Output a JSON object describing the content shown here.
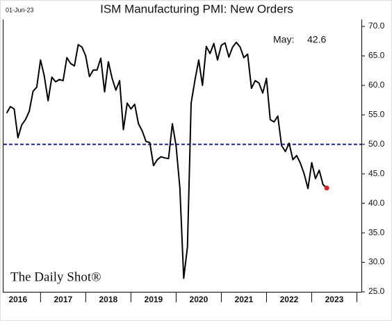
{
  "chart_data": {
    "type": "line",
    "title": "ISM Manufacturing PMI: New Orders",
    "date_stamp": "01-Jun-23",
    "annotation": "May:",
    "source": "The Daily Shot®",
    "x": [
      2016.25,
      2016.333,
      2016.417,
      2016.5,
      2016.583,
      2016.667,
      2016.75,
      2016.833,
      2016.917,
      2017,
      2017.083,
      2017.167,
      2017.25,
      2017.333,
      2017.417,
      2017.5,
      2017.583,
      2017.667,
      2017.75,
      2017.833,
      2017.917,
      2018,
      2018.083,
      2018.167,
      2018.25,
      2018.333,
      2018.417,
      2018.5,
      2018.583,
      2018.667,
      2018.75,
      2018.833,
      2018.917,
      2019,
      2019.083,
      2019.167,
      2019.25,
      2019.333,
      2019.417,
      2019.5,
      2019.583,
      2019.667,
      2019.75,
      2019.833,
      2019.917,
      2020,
      2020.083,
      2020.167,
      2020.25,
      2020.333,
      2020.417,
      2020.5,
      2020.583,
      2020.667,
      2020.75,
      2020.833,
      2020.917,
      2021,
      2021.083,
      2021.167,
      2021.25,
      2021.333,
      2021.417,
      2021.5,
      2021.583,
      2021.667,
      2021.75,
      2021.833,
      2021.917,
      2022,
      2022.083,
      2022.167,
      2022.25,
      2022.333,
      2022.417,
      2022.5,
      2022.583,
      2022.667,
      2022.75,
      2022.833,
      2022.917,
      2023,
      2023.083,
      2023.167,
      2023.25,
      2023.333
    ],
    "series": [
      {
        "name": "New Orders",
        "color": "#000000",
        "values": [
          55.3,
          56.4,
          56,
          51.1,
          53.3,
          54.2,
          55.6,
          59,
          59.7,
          64.3,
          61.6,
          57.4,
          61.4,
          60.6,
          61,
          60.8,
          64.7,
          63.7,
          63.3,
          66.9,
          66.5,
          65,
          61.5,
          62.6,
          62.6,
          64.6,
          58.9,
          64,
          61.2,
          59.2,
          60.8,
          52.5,
          57,
          56,
          56.8,
          53.5,
          52.3,
          50.5,
          50.3,
          46.4,
          47.4,
          47.9,
          47.7,
          47.6,
          53.5,
          49.7,
          42.6,
          27.3,
          32.6,
          57,
          60.9,
          64.3,
          60,
          66.6,
          65.4,
          67.1,
          64.3,
          66.8,
          67.2,
          64.8,
          66.5,
          67.3,
          66.5,
          64.7,
          65.3,
          59.5,
          60.8,
          60.4,
          58.7,
          61.2,
          54.2,
          53.8,
          54.8,
          49.8,
          48.8,
          50.2,
          47.4,
          48.1,
          46.8,
          45,
          42.5,
          46.9,
          44.2,
          45.6,
          43.2,
          42.6
        ]
      }
    ],
    "last_point_color": "#e02020",
    "hline": {
      "value": 50,
      "color": "#1f1fbf"
    },
    "xlim": [
      2016.18,
      2024.1
    ],
    "xticks": [
      {
        "value": 2016.5,
        "label": "2016"
      },
      {
        "value": 2017.5,
        "label": "2017"
      },
      {
        "value": 2018.5,
        "label": "2018"
      },
      {
        "value": 2019.5,
        "label": "2019"
      },
      {
        "value": 2020.5,
        "label": "2020"
      },
      {
        "value": 2021.5,
        "label": "2021"
      },
      {
        "value": 2022.5,
        "label": "2022"
      },
      {
        "value": 2023.5,
        "label": "2023"
      }
    ],
    "xtick_marks": [
      2017,
      2018,
      2019,
      2020,
      2021,
      2022,
      2023,
      2024
    ],
    "ylim": [
      25,
      70
    ],
    "yticks": [
      {
        "value": 25,
        "label": "25.0"
      },
      {
        "value": 30,
        "label": "30.0"
      },
      {
        "value": 35,
        "label": "35.0"
      },
      {
        "value": 40,
        "label": "40.0"
      },
      {
        "value": 45,
        "label": "45.0"
      },
      {
        "value": 50,
        "label": "50.0"
      },
      {
        "value": 55,
        "label": "55.0"
      },
      {
        "value": 60,
        "label": "60.0"
      },
      {
        "value": 65,
        "label": "65.0"
      },
      {
        "value": 70,
        "label": "70.0"
      }
    ]
  }
}
